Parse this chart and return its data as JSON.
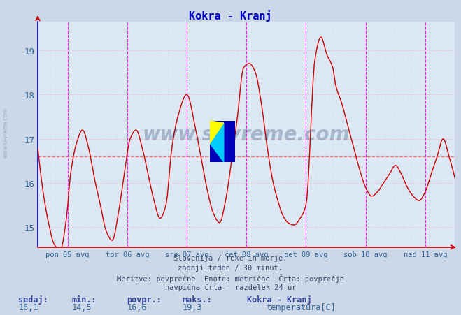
{
  "title": "Kokra - Kranj",
  "title_color": "#0000cc",
  "bg_color": "#ccd8e8",
  "plot_bg_color": "#dce8f4",
  "line_color": "#cc0000",
  "line_width": 1.0,
  "ylim": [
    14.55,
    19.65
  ],
  "yticks": [
    15,
    16,
    17,
    18,
    19
  ],
  "avg_line_y": 16.6,
  "avg_line_color": "#ff6666",
  "grid_color_major": "#ffaaaa",
  "grid_color_minor": "#c8d4e0",
  "vline_color": "#ff00ff",
  "tick_label_color": "#336699",
  "x_labels": [
    "pon 05 avg",
    "tor 06 avg",
    "sre 07 avg",
    "čet 08 avg",
    "pet 09 avg",
    "sob 10 avg",
    "ned 11 avg"
  ],
  "x_label_fracs": [
    0.0714,
    0.2143,
    0.3571,
    0.5,
    0.6429,
    0.7857,
    0.9286
  ],
  "footer_lines": [
    "Slovenija / reke in morje.",
    "zadnji teden / 30 minut.",
    "Meritve: povprečne  Enote: metrične  Črta: povprečje",
    "navpična črta - razdelek 24 ur"
  ],
  "stats_labels": [
    "sedaj:",
    "min.:",
    "povpr.:",
    "maks.:"
  ],
  "stats_values": [
    "16,1",
    "14,5",
    "16,6",
    "19,3"
  ],
  "legend_name": "Kokra - Kranj",
  "legend_label": "temperatura[C]",
  "legend_color": "#cc0000",
  "watermark_text": "www.si-vreme.com",
  "watermark_color": "#1a3a6a",
  "watermark_alpha": 0.28,
  "keypoints_t": [
    0.0,
    0.04,
    0.1,
    0.18,
    0.28,
    0.38,
    0.48,
    0.55,
    0.65,
    0.75,
    0.85,
    0.95,
    1.05,
    1.15,
    1.25,
    1.35,
    1.45,
    1.55,
    1.65,
    1.75,
    1.85,
    1.95,
    2.05,
    2.15,
    2.25,
    2.35,
    2.5,
    2.65,
    2.75,
    2.85,
    2.95,
    3.05,
    3.15,
    3.25,
    3.35,
    3.45,
    3.55,
    3.65,
    3.75,
    3.85,
    3.95,
    4.05,
    4.1,
    4.2,
    4.3,
    4.4,
    4.5,
    4.65,
    4.75,
    4.85,
    4.95,
    5.0,
    5.1,
    5.2,
    5.3,
    5.4,
    5.5,
    5.6,
    5.7,
    5.8,
    5.9,
    6.0,
    6.1,
    6.2,
    6.3,
    6.4,
    6.5,
    6.6,
    6.7,
    6.8,
    6.9,
    7.0
  ],
  "keypoints_y": [
    16.8,
    16.3,
    15.7,
    15.1,
    14.6,
    14.5,
    15.2,
    16.2,
    16.9,
    17.2,
    16.8,
    16.1,
    15.5,
    14.9,
    14.7,
    15.3,
    16.2,
    17.0,
    17.2,
    16.8,
    16.2,
    15.6,
    15.2,
    15.5,
    16.8,
    17.5,
    18.0,
    17.2,
    16.5,
    15.8,
    15.3,
    15.1,
    15.6,
    16.5,
    17.5,
    18.6,
    18.7,
    18.5,
    17.8,
    16.8,
    16.0,
    15.5,
    15.3,
    15.1,
    15.05,
    15.2,
    15.5,
    18.8,
    19.3,
    18.9,
    18.6,
    18.2,
    17.8,
    17.3,
    16.8,
    16.3,
    15.9,
    15.7,
    15.8,
    16.0,
    16.2,
    16.4,
    16.2,
    15.9,
    15.7,
    15.6,
    15.8,
    16.2,
    16.6,
    17.0,
    16.6,
    16.1
  ]
}
